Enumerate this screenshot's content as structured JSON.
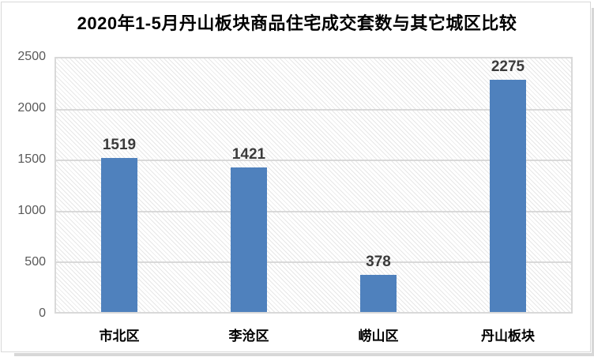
{
  "title": "2020年1-5月丹山板块商品住宅成交套数与其它城区比较",
  "colors": {
    "bar": "#4F81BD",
    "gridline": "#d9d9d9",
    "plot_border": "#d9d9d9",
    "hatch_line": "#e7e7e7",
    "tick_label": "#595959",
    "data_label": "#3b3b3b",
    "category_label": "#000000",
    "background": "#ffffff"
  },
  "chart_data": {
    "type": "bar",
    "title": "2020年1-5月丹山板块商品住宅成交套数与其它城区比较",
    "categories": [
      "市北区",
      "李沧区",
      "崂山区",
      "丹山板块"
    ],
    "values": [
      1519,
      1421,
      378,
      2275
    ],
    "data_labels": [
      "1519",
      "1421",
      "378",
      "2275"
    ],
    "xlabel": "",
    "ylabel": "",
    "ylim": [
      0,
      2500
    ],
    "yticks": [
      0,
      500,
      1000,
      1500,
      2000,
      2500
    ],
    "grid": true,
    "legend": false,
    "plot_background": "light-downward-diagonal-hatch",
    "bar_color": "#4F81BD"
  }
}
